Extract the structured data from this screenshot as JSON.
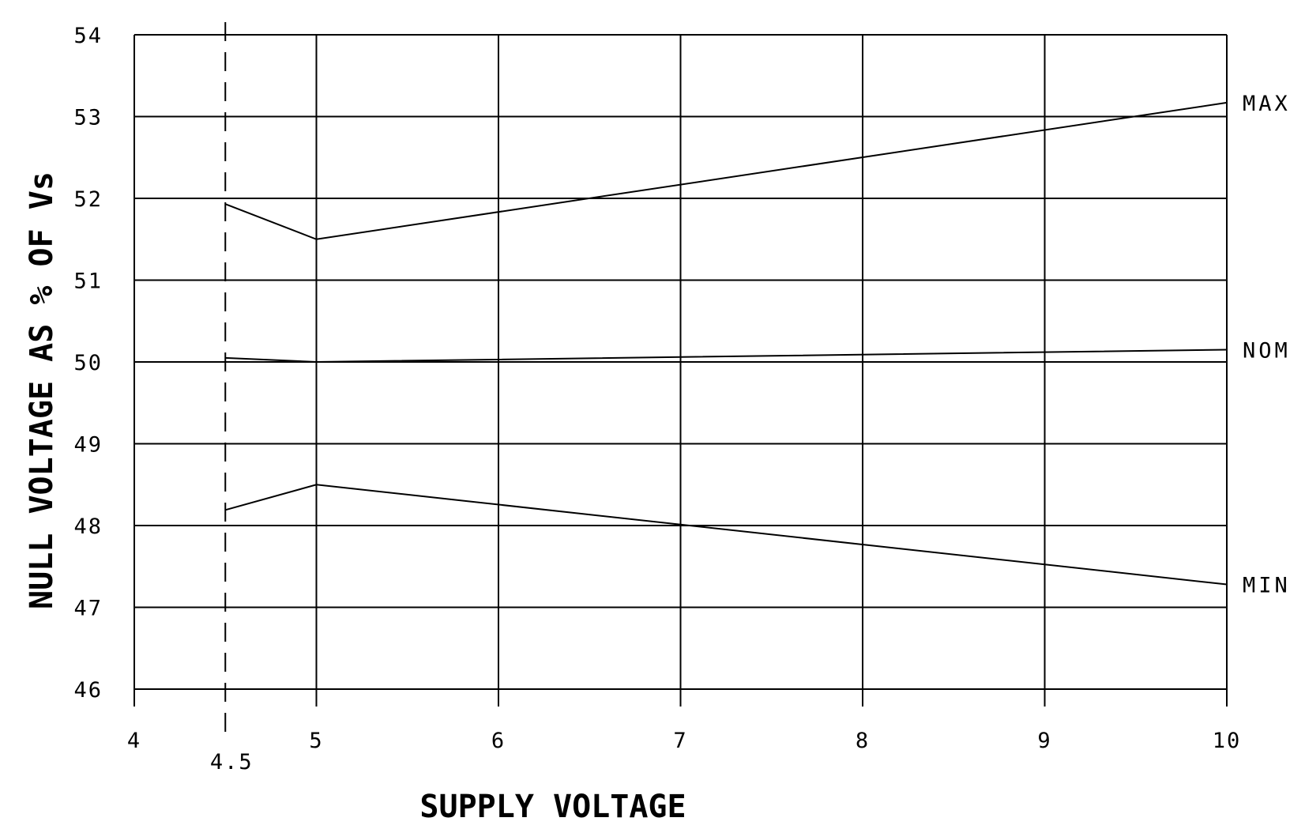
{
  "chart_data": {
    "type": "line",
    "xlabel": "SUPPLY VOLTAGE",
    "ylabel": "NULL VOLTAGE AS % OF Vs",
    "xlim": [
      4,
      10
    ],
    "ylim": [
      46,
      54
    ],
    "x_ticks": [
      4,
      5,
      6,
      7,
      8,
      9,
      10
    ],
    "x_tick_labels": [
      "4",
      "5",
      "6",
      "7",
      "8",
      "9",
      "10"
    ],
    "y_ticks": [
      46,
      47,
      48,
      49,
      50,
      51,
      52,
      53,
      54
    ],
    "y_tick_labels": [
      "46",
      "47",
      "48",
      "49",
      "50",
      "51",
      "52",
      "53",
      "54"
    ],
    "reference_line": {
      "x": 4.5,
      "label": "4.5",
      "style": "dashed"
    },
    "grid": true,
    "series": [
      {
        "name": "MAX",
        "x": [
          4.5,
          5,
          10
        ],
        "values": [
          51.93,
          51.5,
          53.17
        ]
      },
      {
        "name": "NOM",
        "x": [
          4.5,
          5,
          10
        ],
        "values": [
          50.05,
          50.0,
          50.15
        ]
      },
      {
        "name": "MIN",
        "x": [
          4.5,
          5,
          10
        ],
        "values": [
          48.19,
          48.5,
          47.28
        ]
      }
    ]
  }
}
